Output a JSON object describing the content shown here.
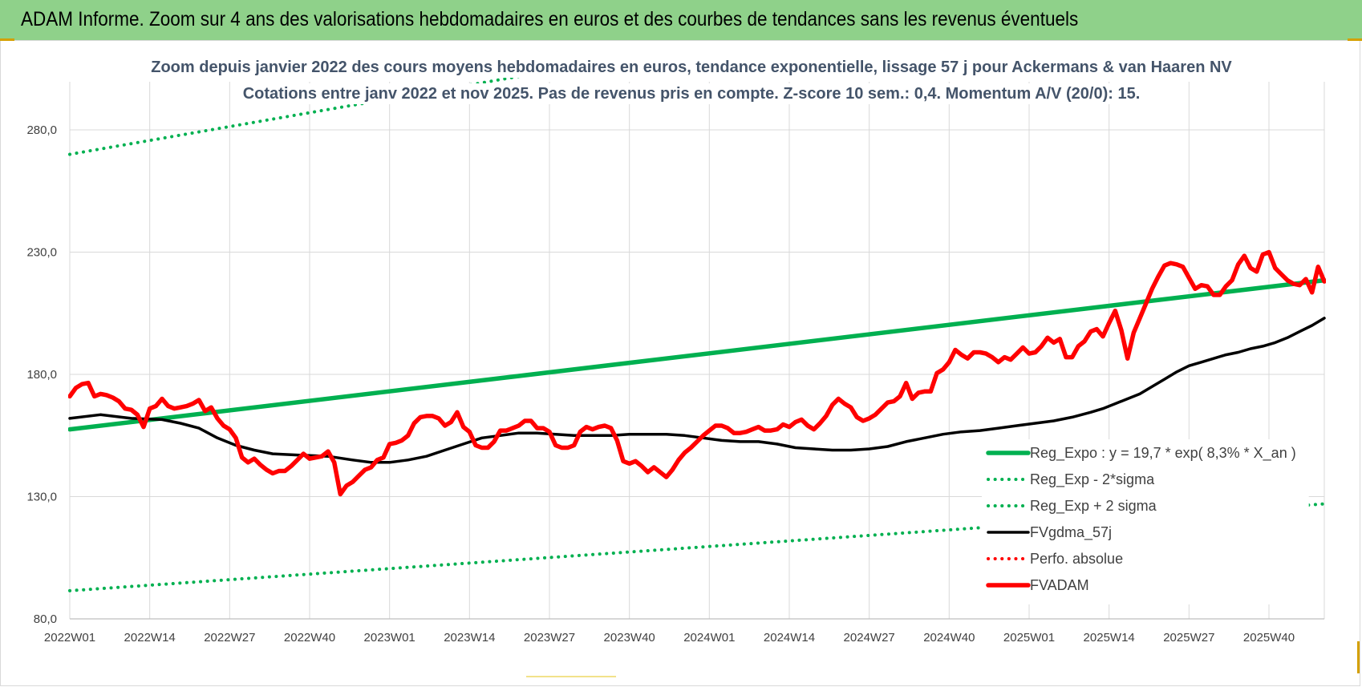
{
  "banner": {
    "title": "ADAM Informe. Zoom sur 4 ans des valorisations hebdomadaires en euros et des courbes de tendances sans les revenus éventuels"
  },
  "colors": {
    "banner_bg": "#8fd18a",
    "trend_green": "#00b050",
    "price_red": "#ff0000",
    "smooth_black": "#000000",
    "title_text": "#44546a",
    "grid": "#d9d9d9"
  },
  "chart_data": {
    "type": "line",
    "title_line1": "Zoom depuis janvier 2022 des cours moyens hebdomadaires en euros, tendance exponentielle, lissage 57 j pour Ackermans & van Haaren NV",
    "title_line2": "Cotations entre janv 2022 et nov 2025. Pas de revenus pris en compte. Z-score 10 sem.: 0,4. Momentum A/V (20/0): 15.",
    "ylim": [
      80,
      280
    ],
    "y_ticks": [
      "80,0",
      "130,0",
      "180,0",
      "230,0",
      "280,0"
    ],
    "y_tick_values": [
      80,
      130,
      180,
      230,
      280
    ],
    "x_ticks": [
      "2022W01",
      "2022W14",
      "2022W27",
      "2022W40",
      "2023W01",
      "2023W14",
      "2023W27",
      "2023W40",
      "2024W01",
      "2024W14",
      "2024W27",
      "2024W40",
      "2025W01",
      "2025W14",
      "2025W27",
      "2025W40"
    ],
    "x_week_count": 205,
    "grid": "vertical and horizontal",
    "legend_position": "bottom-right",
    "series": [
      {
        "name": "Reg_Expo : y = 19,7 * exp( 8,3% *  X_an )",
        "style": "solid-thick",
        "color": "#00b050",
        "points": [
          [
            0,
            157.5
          ],
          [
            204,
            218.5
          ]
        ]
      },
      {
        "name": "Reg_Exp - 2*sigma",
        "style": "dotted",
        "color": "#00b050",
        "points": [
          [
            0,
            91.5
          ],
          [
            204,
            127
          ]
        ]
      },
      {
        "name": "Reg_Exp + 2 sigma",
        "style": "dotted",
        "color": "#00b050",
        "points": [
          [
            0,
            270
          ],
          [
            204,
            359
          ]
        ]
      },
      {
        "name": "FVgdma_57j",
        "style": "solid",
        "color": "#000000",
        "points": [
          [
            0,
            162
          ],
          [
            5,
            163.5
          ],
          [
            10,
            162
          ],
          [
            15,
            161.5
          ],
          [
            18,
            160
          ],
          [
            21,
            158
          ],
          [
            24,
            154
          ],
          [
            27,
            151
          ],
          [
            30,
            149
          ],
          [
            33,
            147.5
          ],
          [
            37,
            147
          ],
          [
            42,
            146.5
          ],
          [
            46,
            145
          ],
          [
            49,
            144
          ],
          [
            52,
            144
          ],
          [
            55,
            145
          ],
          [
            58,
            146.5
          ],
          [
            61,
            149
          ],
          [
            64,
            151.5
          ],
          [
            67,
            154
          ],
          [
            70,
            155
          ],
          [
            73,
            156
          ],
          [
            76,
            156
          ],
          [
            79,
            155.5
          ],
          [
            82,
            155
          ],
          [
            85,
            155
          ],
          [
            88,
            155
          ],
          [
            91,
            155.5
          ],
          [
            94,
            155.5
          ],
          [
            97,
            155.5
          ],
          [
            100,
            155
          ],
          [
            103,
            154
          ],
          [
            106,
            153
          ],
          [
            109,
            152.5
          ],
          [
            112,
            152.5
          ],
          [
            115,
            151.5
          ],
          [
            118,
            150
          ],
          [
            121,
            149.5
          ],
          [
            124,
            149
          ],
          [
            127,
            149
          ],
          [
            130,
            149.5
          ],
          [
            133,
            150.5
          ],
          [
            136,
            152.5
          ],
          [
            139,
            154
          ],
          [
            142,
            155.5
          ],
          [
            145,
            156.5
          ],
          [
            148,
            157
          ],
          [
            151,
            158
          ],
          [
            154,
            159
          ],
          [
            157,
            160
          ],
          [
            160,
            161
          ],
          [
            163,
            162.5
          ],
          [
            166,
            164.5
          ],
          [
            168,
            166
          ],
          [
            170,
            168
          ],
          [
            172,
            170
          ],
          [
            174,
            172
          ],
          [
            176,
            175
          ],
          [
            178,
            178
          ],
          [
            180,
            181
          ],
          [
            182,
            183.5
          ],
          [
            184,
            185
          ],
          [
            186,
            186.5
          ],
          [
            188,
            188
          ],
          [
            190,
            189
          ],
          [
            192,
            190.5
          ],
          [
            194,
            191.5
          ],
          [
            196,
            193
          ],
          [
            198,
            195
          ],
          [
            200,
            197.5
          ],
          [
            202,
            200
          ],
          [
            204,
            203
          ]
        ]
      },
      {
        "name": "Perfo. absolue",
        "style": "dotted",
        "color": "#ff0000",
        "points": []
      },
      {
        "name": "FVADAM",
        "style": "solid-thick",
        "color": "#ff0000",
        "points": [
          [
            0,
            171
          ],
          [
            1,
            174.5
          ],
          [
            2,
            176
          ],
          [
            3,
            176.5
          ],
          [
            4,
            171
          ],
          [
            5,
            172
          ],
          [
            6,
            171.5
          ],
          [
            7,
            170.5
          ],
          [
            8,
            169
          ],
          [
            9,
            166
          ],
          [
            10,
            165.5
          ],
          [
            11,
            163.5
          ],
          [
            12,
            158.5
          ],
          [
            13,
            166
          ],
          [
            14,
            167
          ],
          [
            15,
            170
          ],
          [
            16,
            167
          ],
          [
            17,
            166
          ],
          [
            18,
            166.5
          ],
          [
            19,
            167
          ],
          [
            20,
            168
          ],
          [
            21,
            169.5
          ],
          [
            22,
            165
          ],
          [
            23,
            166.5
          ],
          [
            24,
            162
          ],
          [
            25,
            159
          ],
          [
            26,
            157.5
          ],
          [
            27,
            154
          ],
          [
            28,
            146
          ],
          [
            29,
            144
          ],
          [
            30,
            145.5
          ],
          [
            31,
            143
          ],
          [
            32,
            141
          ],
          [
            33,
            139.5
          ],
          [
            34,
            140.5
          ],
          [
            35,
            140.5
          ],
          [
            36,
            142.5
          ],
          [
            37,
            145
          ],
          [
            38,
            147.5
          ],
          [
            39,
            145.5
          ],
          [
            40,
            146
          ],
          [
            41,
            146.5
          ],
          [
            42,
            148.5
          ],
          [
            43,
            144
          ],
          [
            44,
            131
          ],
          [
            45,
            134.5
          ],
          [
            46,
            136
          ],
          [
            47,
            138.5
          ],
          [
            48,
            141
          ],
          [
            49,
            142
          ],
          [
            50,
            145
          ],
          [
            51,
            146
          ],
          [
            52,
            151.5
          ],
          [
            53,
            152
          ],
          [
            54,
            153
          ],
          [
            55,
            155
          ],
          [
            56,
            160
          ],
          [
            57,
            162.5
          ],
          [
            58,
            163
          ],
          [
            59,
            163
          ],
          [
            60,
            162
          ],
          [
            61,
            159
          ],
          [
            62,
            160.5
          ],
          [
            63,
            164.5
          ],
          [
            64,
            158.5
          ],
          [
            65,
            156.5
          ],
          [
            66,
            151
          ],
          [
            67,
            150
          ],
          [
            68,
            150
          ],
          [
            69,
            152.5
          ],
          [
            70,
            157
          ],
          [
            71,
            157
          ],
          [
            72,
            158
          ],
          [
            73,
            159
          ],
          [
            74,
            161
          ],
          [
            75,
            161
          ],
          [
            76,
            158
          ],
          [
            77,
            158
          ],
          [
            78,
            156.5
          ],
          [
            79,
            151
          ],
          [
            80,
            150
          ],
          [
            81,
            150
          ],
          [
            82,
            151
          ],
          [
            83,
            156.5
          ],
          [
            84,
            158.5
          ],
          [
            85,
            157.5
          ],
          [
            86,
            158.5
          ],
          [
            87,
            159
          ],
          [
            88,
            158
          ],
          [
            89,
            153
          ],
          [
            90,
            144.5
          ],
          [
            91,
            143.5
          ],
          [
            92,
            144.5
          ],
          [
            93,
            142.5
          ],
          [
            94,
            140
          ],
          [
            95,
            142
          ],
          [
            96,
            140
          ],
          [
            97,
            138
          ],
          [
            98,
            141
          ],
          [
            99,
            145
          ],
          [
            100,
            148
          ],
          [
            101,
            150
          ],
          [
            102,
            152.5
          ],
          [
            103,
            155
          ],
          [
            104,
            157
          ],
          [
            105,
            159
          ],
          [
            106,
            159
          ],
          [
            107,
            158
          ],
          [
            108,
            156
          ],
          [
            109,
            156
          ],
          [
            110,
            156.5
          ],
          [
            111,
            157.5
          ],
          [
            112,
            158.5
          ],
          [
            113,
            157
          ],
          [
            114,
            157
          ],
          [
            115,
            157.5
          ],
          [
            116,
            159.5
          ],
          [
            117,
            158.5
          ],
          [
            118,
            160.5
          ],
          [
            119,
            161.5
          ],
          [
            120,
            159
          ],
          [
            121,
            157.5
          ],
          [
            122,
            160
          ],
          [
            123,
            163
          ],
          [
            124,
            167.5
          ],
          [
            125,
            170
          ],
          [
            126,
            168
          ],
          [
            127,
            166.5
          ],
          [
            128,
            162.5
          ],
          [
            129,
            161
          ],
          [
            130,
            162
          ],
          [
            131,
            163.5
          ],
          [
            132,
            166
          ],
          [
            133,
            168.5
          ],
          [
            134,
            169
          ],
          [
            135,
            171
          ],
          [
            136,
            176.5
          ],
          [
            137,
            170
          ],
          [
            138,
            172.5
          ],
          [
            139,
            173
          ],
          [
            140,
            173
          ],
          [
            141,
            180.5
          ],
          [
            142,
            182
          ],
          [
            143,
            185
          ],
          [
            144,
            190
          ],
          [
            145,
            188
          ],
          [
            146,
            186.5
          ],
          [
            147,
            189
          ],
          [
            148,
            189
          ],
          [
            149,
            188.5
          ],
          [
            150,
            187
          ],
          [
            151,
            185
          ],
          [
            152,
            187
          ],
          [
            153,
            186
          ],
          [
            154,
            188.5
          ],
          [
            155,
            191
          ],
          [
            156,
            188.5
          ],
          [
            157,
            189
          ],
          [
            158,
            191.5
          ],
          [
            159,
            195
          ],
          [
            160,
            193
          ],
          [
            161,
            194.5
          ],
          [
            162,
            187
          ],
          [
            163,
            187
          ],
          [
            164,
            191.5
          ],
          [
            165,
            193.5
          ],
          [
            166,
            197.5
          ],
          [
            167,
            198.5
          ],
          [
            168,
            195.5
          ],
          [
            169,
            201
          ],
          [
            170,
            206
          ],
          [
            171,
            198
          ],
          [
            172,
            186.5
          ],
          [
            173,
            197
          ],
          [
            174,
            203
          ],
          [
            175,
            209
          ],
          [
            176,
            215
          ],
          [
            177,
            220
          ],
          [
            178,
            224.5
          ],
          [
            179,
            225.5
          ],
          [
            180,
            225
          ],
          [
            181,
            224
          ],
          [
            182,
            219.5
          ],
          [
            183,
            215
          ],
          [
            184,
            216.5
          ],
          [
            185,
            216
          ],
          [
            186,
            212.5
          ],
          [
            187,
            212.5
          ],
          [
            188,
            216
          ],
          [
            189,
            218.5
          ],
          [
            190,
            225
          ],
          [
            191,
            228.5
          ],
          [
            192,
            223.5
          ],
          [
            193,
            222
          ],
          [
            194,
            229
          ],
          [
            195,
            230
          ],
          [
            196,
            223.5
          ],
          [
            197,
            221
          ],
          [
            198,
            218.5
          ],
          [
            199,
            217
          ],
          [
            200,
            216.5
          ],
          [
            201,
            219
          ],
          [
            202,
            213.5
          ],
          [
            203,
            224
          ],
          [
            204,
            218
          ]
        ]
      }
    ]
  }
}
